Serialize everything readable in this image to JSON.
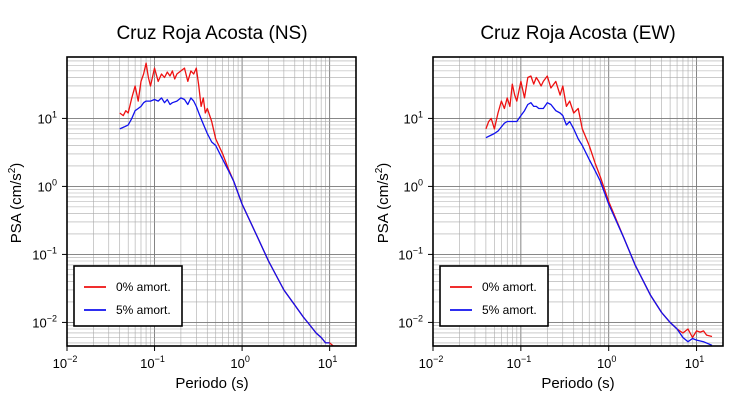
{
  "chart_data": [
    {
      "type": "line",
      "title": "Cruz Roja Acosta (NS)",
      "xlabel": "Periodo (s)",
      "ylabel": "PSA (cm/s²)",
      "xscale": "log",
      "yscale": "log",
      "xlim": [
        0.01,
        20
      ],
      "ylim": [
        0.0045,
        80
      ],
      "grid": true,
      "legend_position": "bottom-left",
      "x_ticks": [
        {
          "base": "10",
          "exp": "−2",
          "value": 0.01
        },
        {
          "base": "10",
          "exp": "−1",
          "value": 0.1
        },
        {
          "base": "10",
          "exp": "0",
          "value": 1
        },
        {
          "base": "10",
          "exp": "1",
          "value": 10
        }
      ],
      "y_ticks": [
        {
          "base": "10",
          "exp": "−2",
          "value": 0.01
        },
        {
          "base": "10",
          "exp": "−1",
          "value": 0.1
        },
        {
          "base": "10",
          "exp": "0",
          "value": 1
        },
        {
          "base": "10",
          "exp": "1",
          "value": 10
        }
      ],
      "series": [
        {
          "name": "0% amort.",
          "color": "#ee1111",
          "x": [
            0.04,
            0.044,
            0.047,
            0.05,
            0.055,
            0.06,
            0.063,
            0.065,
            0.07,
            0.075,
            0.08,
            0.085,
            0.09,
            0.1,
            0.11,
            0.12,
            0.13,
            0.14,
            0.15,
            0.16,
            0.17,
            0.18,
            0.2,
            0.22,
            0.24,
            0.26,
            0.28,
            0.3,
            0.32,
            0.34,
            0.36,
            0.38,
            0.4,
            0.45,
            0.5,
            0.6,
            0.7,
            0.8,
            1.0,
            1.5,
            2,
            3,
            4,
            5,
            6,
            7,
            8,
            9,
            10,
            11,
            13
          ],
          "y": [
            12,
            11,
            13,
            12,
            20,
            30,
            22,
            18,
            35,
            45,
            65,
            40,
            30,
            55,
            35,
            45,
            40,
            48,
            42,
            50,
            38,
            45,
            50,
            55,
            35,
            50,
            45,
            55,
            30,
            15,
            20,
            12,
            14,
            9,
            5,
            3,
            1.8,
            1.2,
            0.55,
            0.18,
            0.08,
            0.03,
            0.018,
            0.012,
            0.009,
            0.007,
            0.006,
            0.005,
            0.005,
            0.0045,
            0.0045
          ]
        },
        {
          "name": "5% amort.",
          "color": "#1111ee",
          "x": [
            0.04,
            0.045,
            0.05,
            0.055,
            0.06,
            0.065,
            0.07,
            0.075,
            0.08,
            0.09,
            0.1,
            0.11,
            0.12,
            0.13,
            0.14,
            0.15,
            0.16,
            0.18,
            0.2,
            0.22,
            0.24,
            0.26,
            0.28,
            0.3,
            0.32,
            0.35,
            0.4,
            0.45,
            0.5,
            0.6,
            0.7,
            0.8,
            1.0,
            1.5,
            2,
            3,
            4,
            5,
            6,
            7,
            8,
            9,
            10
          ],
          "y": [
            7,
            7.5,
            8,
            10,
            13,
            14,
            15,
            17,
            18,
            18,
            19,
            18,
            20,
            17,
            19,
            16,
            17,
            18,
            20,
            19,
            16,
            20,
            18,
            15,
            12,
            9,
            6,
            4.5,
            4,
            2.5,
            1.7,
            1.2,
            0.55,
            0.18,
            0.08,
            0.03,
            0.018,
            0.012,
            0.009,
            0.007,
            0.006,
            0.005,
            0.005
          ]
        }
      ]
    },
    {
      "type": "line",
      "title": "Cruz Roja Acosta (EW)",
      "xlabel": "Periodo (s)",
      "ylabel": "PSA (cm/s²)",
      "xscale": "log",
      "yscale": "log",
      "xlim": [
        0.01,
        20
      ],
      "ylim": [
        0.0045,
        80
      ],
      "grid": true,
      "legend_position": "bottom-left",
      "x_ticks": [
        {
          "base": "10",
          "exp": "−2",
          "value": 0.01
        },
        {
          "base": "10",
          "exp": "−1",
          "value": 0.1
        },
        {
          "base": "10",
          "exp": "0",
          "value": 1
        },
        {
          "base": "10",
          "exp": "1",
          "value": 10
        }
      ],
      "y_ticks": [
        {
          "base": "10",
          "exp": "−2",
          "value": 0.01
        },
        {
          "base": "10",
          "exp": "−1",
          "value": 0.1
        },
        {
          "base": "10",
          "exp": "0",
          "value": 1
        },
        {
          "base": "10",
          "exp": "1",
          "value": 10
        }
      ],
      "series": [
        {
          "name": "0% amort.",
          "color": "#ee1111",
          "x": [
            0.04,
            0.043,
            0.046,
            0.05,
            0.055,
            0.06,
            0.065,
            0.07,
            0.075,
            0.08,
            0.085,
            0.09,
            0.1,
            0.11,
            0.12,
            0.13,
            0.14,
            0.15,
            0.16,
            0.17,
            0.18,
            0.2,
            0.22,
            0.25,
            0.28,
            0.3,
            0.33,
            0.36,
            0.4,
            0.45,
            0.5,
            0.6,
            0.7,
            0.8,
            1.0,
            1.5,
            2,
            3,
            4,
            5,
            6,
            7,
            8,
            9,
            10,
            11,
            12,
            13,
            15
          ],
          "y": [
            7,
            9,
            10,
            7,
            12,
            18,
            14,
            20,
            15,
            32,
            22,
            18,
            35,
            20,
            40,
            42,
            32,
            40,
            35,
            30,
            35,
            42,
            28,
            35,
            22,
            30,
            15,
            18,
            12,
            14,
            7,
            4,
            2.2,
            1.4,
            0.6,
            0.17,
            0.07,
            0.025,
            0.014,
            0.01,
            0.008,
            0.007,
            0.008,
            0.006,
            0.0075,
            0.0072,
            0.0075,
            0.0065,
            0.0062
          ]
        },
        {
          "name": "5% amort.",
          "color": "#1111ee",
          "x": [
            0.04,
            0.045,
            0.05,
            0.055,
            0.06,
            0.065,
            0.07,
            0.08,
            0.09,
            0.1,
            0.11,
            0.12,
            0.13,
            0.14,
            0.15,
            0.16,
            0.18,
            0.2,
            0.22,
            0.25,
            0.28,
            0.3,
            0.33,
            0.36,
            0.4,
            0.45,
            0.5,
            0.6,
            0.7,
            0.8,
            1.0,
            1.5,
            2,
            3,
            4,
            5,
            6,
            7,
            8,
            9,
            10,
            12,
            15
          ],
          "y": [
            5.2,
            5.6,
            6,
            6.5,
            7.5,
            8.5,
            9,
            9,
            9,
            11,
            13,
            16,
            17,
            15,
            15,
            14,
            14,
            17,
            16,
            13,
            12,
            11,
            8,
            9,
            7,
            5,
            4,
            2.5,
            1.7,
            1.2,
            0.55,
            0.17,
            0.07,
            0.025,
            0.014,
            0.01,
            0.008,
            0.006,
            0.0052,
            0.0058,
            0.0055,
            0.0052,
            0.0046
          ]
        }
      ]
    }
  ]
}
